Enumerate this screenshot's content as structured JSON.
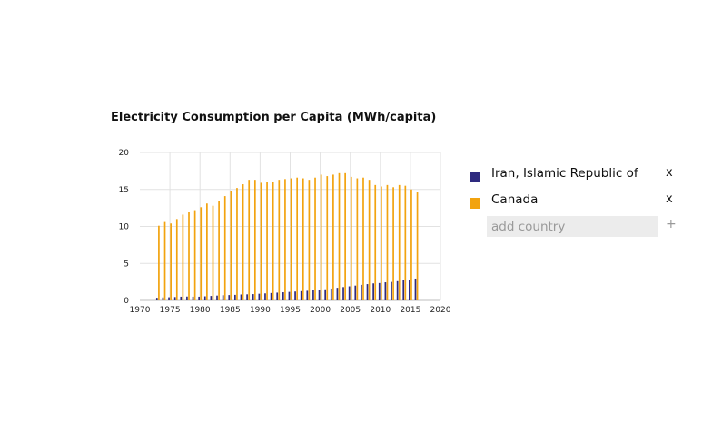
{
  "chart_data": {
    "type": "bar",
    "title": "Electricity Consumption per Capita (MWh/capita)",
    "xlabel": "",
    "ylabel": "",
    "xlim": [
      1970,
      2020
    ],
    "ylim": [
      0,
      20
    ],
    "x_ticks": [
      1970,
      1975,
      1980,
      1985,
      1990,
      1995,
      2000,
      2005,
      2010,
      2015,
      2020
    ],
    "y_ticks": [
      0,
      5,
      10,
      15,
      20
    ],
    "grid": true,
    "x": [
      1973,
      1974,
      1975,
      1976,
      1977,
      1978,
      1979,
      1980,
      1981,
      1982,
      1983,
      1984,
      1985,
      1986,
      1987,
      1988,
      1989,
      1990,
      1991,
      1992,
      1993,
      1994,
      1995,
      1996,
      1997,
      1998,
      1999,
      2000,
      2001,
      2002,
      2003,
      2004,
      2005,
      2006,
      2007,
      2008,
      2009,
      2010,
      2011,
      2012,
      2013,
      2014,
      2015,
      2016
    ],
    "series": [
      {
        "name": "Iran, Islamic Republic of",
        "color": "#2e2a7f",
        "values": [
          0.35,
          0.4,
          0.42,
          0.45,
          0.5,
          0.52,
          0.5,
          0.5,
          0.55,
          0.6,
          0.65,
          0.7,
          0.72,
          0.75,
          0.8,
          0.82,
          0.85,
          0.9,
          0.95,
          1.0,
          1.05,
          1.1,
          1.15,
          1.2,
          1.25,
          1.3,
          1.4,
          1.45,
          1.5,
          1.6,
          1.7,
          1.8,
          1.9,
          2.0,
          2.1,
          2.2,
          2.3,
          2.35,
          2.45,
          2.5,
          2.6,
          2.7,
          2.8,
          2.95
        ]
      },
      {
        "name": "Canada",
        "color": "#f2a30f",
        "values": [
          10.1,
          10.6,
          10.4,
          11.0,
          11.6,
          11.9,
          12.2,
          12.6,
          13.1,
          12.8,
          13.4,
          14.1,
          14.8,
          15.2,
          15.7,
          16.3,
          16.3,
          15.9,
          16.0,
          16.0,
          16.3,
          16.4,
          16.5,
          16.6,
          16.5,
          16.3,
          16.6,
          17.0,
          16.8,
          17.0,
          17.2,
          17.2,
          16.7,
          16.5,
          16.6,
          16.3,
          15.6,
          15.4,
          15.6,
          15.3,
          15.6,
          15.5,
          15.0,
          14.6
        ]
      }
    ]
  },
  "legend": {
    "items": [
      {
        "label": "Iran, Islamic Republic of",
        "color": "#2e2a7f",
        "remove_label": "x"
      },
      {
        "label": "Canada",
        "color": "#f2a30f",
        "remove_label": "x"
      }
    ],
    "add_placeholder": "add country",
    "add_label": "+"
  }
}
